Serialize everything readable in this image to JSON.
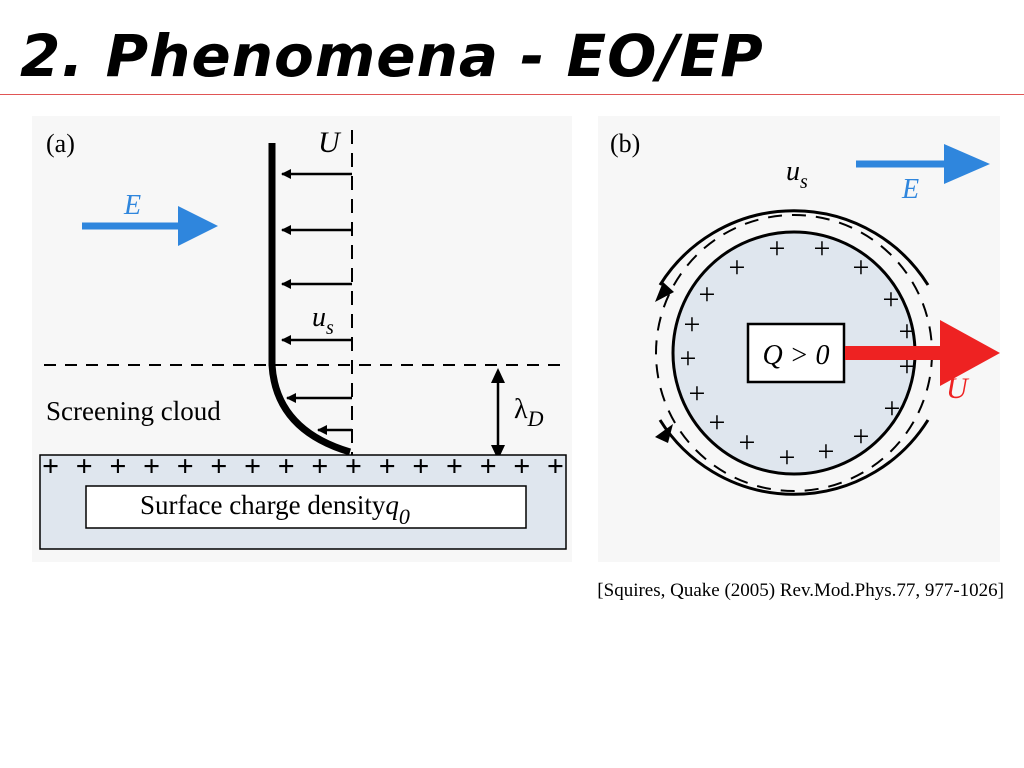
{
  "slide": {
    "title": "2. Phenomena - EO/EP",
    "citation": "[Squires, Quake (2005) Rev.Mod.Phys.77, 977-1026]"
  },
  "panel_a": {
    "label": "(a)",
    "velocity_label": "U",
    "field_label": "E",
    "slip_label_main": "u",
    "slip_label_sub": "s",
    "cloud_label": "Screening cloud",
    "debye_main": "λ",
    "debye_sub": "D",
    "surface_label": "Surface charge density",
    "surface_symbol_main": "q",
    "surface_symbol_sub": "0",
    "plus_row": "+ + + + + + + + + + + + + + + +"
  },
  "panel_b": {
    "label": "(b)",
    "slip_label_main": "u",
    "slip_label_sub": "s",
    "field_label": "E",
    "charge_label": "Q > 0",
    "velocity_label": "U"
  },
  "colors": {
    "field_arrow": "#2f86dd",
    "velocity_arrow": "#ee2222",
    "panel_bg": "#f7f7f7",
    "fill_light": "#dfe6ee"
  }
}
